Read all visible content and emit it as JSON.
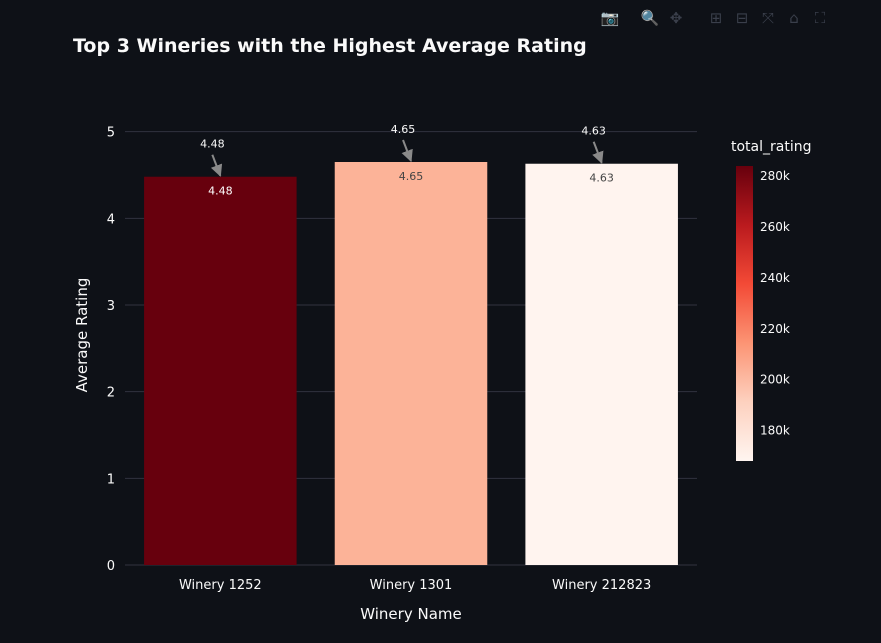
{
  "modebar": {
    "icons": [
      "camera-icon",
      "zoom-icon",
      "pan-icon",
      "zoom-in-icon",
      "zoom-out-icon",
      "autoscale-icon",
      "reset-axes-icon",
      "fullscreen-icon"
    ],
    "glyphs": [
      "📷",
      "🔍",
      "✥",
      "⊞",
      "⊟",
      "⤧",
      "⌂",
      "⛶"
    ]
  },
  "chart_data": {
    "type": "bar",
    "title": "Top 3 Wineries with the Highest Average Rating",
    "xlabel": "Winery Name",
    "ylabel": "Average Rating",
    "categories": [
      "Winery 1252",
      "Winery 1301",
      "Winery 212823"
    ],
    "values": [
      4.48,
      4.65,
      4.63
    ],
    "data_labels": [
      "4.48",
      "4.65",
      "4.63"
    ],
    "annotations": [
      "4.48",
      "4.65",
      "4.63"
    ],
    "ylim": [
      0,
      5.25
    ],
    "yticks": [
      0,
      1,
      2,
      3,
      4,
      5
    ],
    "grid": true,
    "colorbar": {
      "title": "total_rating",
      "min": 168000,
      "max": 284000,
      "ticks": [
        180000,
        200000,
        220000,
        240000,
        260000,
        280000
      ],
      "tick_labels": [
        "180k",
        "200k",
        "220k",
        "240k",
        "260k",
        "280k"
      ],
      "colorscale": [
        "#fff5f0",
        "#fdd1bf",
        "#fc9474",
        "#f34a36",
        "#ba1a1e",
        "#67000d"
      ]
    },
    "total_rating": [
      284000,
      205000,
      168000
    ],
    "bar_colors": [
      "#67000d",
      "#fcb398",
      "#fff4ef"
    ],
    "data_label_colors": [
      "#ffffff",
      "#444444",
      "#444444"
    ],
    "background": "#0e1117",
    "text_color": "#fafafa",
    "grid_color": "#31333f"
  }
}
